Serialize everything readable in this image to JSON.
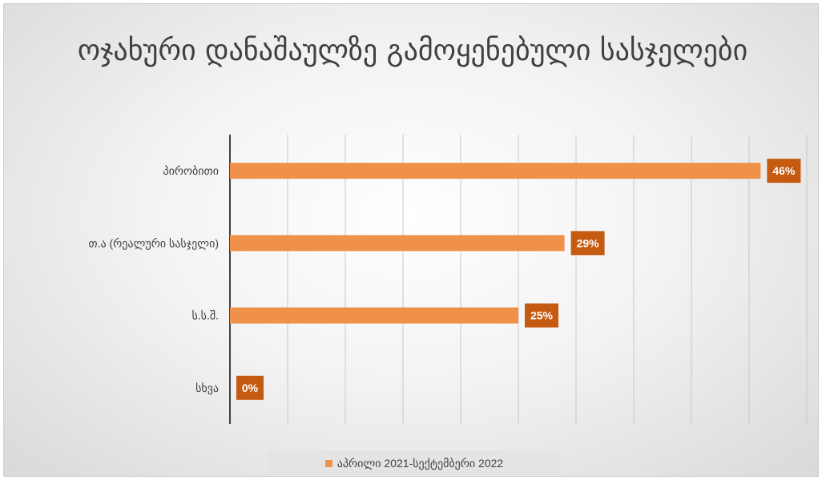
{
  "chart_data": {
    "type": "bar",
    "orientation": "horizontal",
    "title": "ოჯახური დანაშაულზე გამოყენებული სასჯელები",
    "categories": [
      "პირობითი",
      "თ.ა (რეალური სასჯელი)",
      "ს.ს.შ.",
      "სხვა"
    ],
    "series": [
      {
        "name": "აპრილი 2021-სექტემბერი 2022",
        "values": [
          46,
          29,
          25,
          0
        ],
        "data_labels": [
          "46%",
          "29%",
          "25%",
          "0%"
        ]
      }
    ],
    "xlim": [
      0,
      50
    ],
    "value_unit": "%",
    "grid": true,
    "legend_position": "bottom",
    "colors": {
      "bar": "#F0914A",
      "label_box": "#C55A11"
    }
  }
}
